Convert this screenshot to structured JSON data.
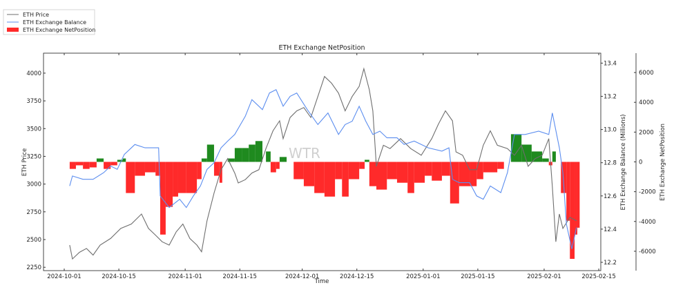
{
  "chart_data": {
    "type": "line",
    "title": "ETH Exchange NetPosition",
    "xlabel": "Time",
    "x_units": "days since 2024-10-01",
    "x_ticks": [
      {
        "day": 0,
        "label": "2024-10-01"
      },
      {
        "day": 14,
        "label": "2024-10-15"
      },
      {
        "day": 31,
        "label": "2024-11-01"
      },
      {
        "day": 45,
        "label": "2024-11-15"
      },
      {
        "day": 61,
        "label": "2024-12-01"
      },
      {
        "day": 75,
        "label": "2024-12-15"
      },
      {
        "day": 92,
        "label": "2025-01-01"
      },
      {
        "day": 106,
        "label": "2025-01-15"
      },
      {
        "day": 123,
        "label": "2025-02-01"
      },
      {
        "day": 137,
        "label": "2025-02-15"
      }
    ],
    "axes": {
      "price": {
        "label": "ETH Price",
        "ylim": [
          2220,
          4180
        ],
        "ticks": [
          "2250",
          "2500",
          "2750",
          "3000",
          "3250",
          "3500",
          "3750",
          "4000"
        ]
      },
      "balance": {
        "label": "ETH Exchange Balance (Millions)",
        "ylim": [
          12.15,
          13.46
        ],
        "ticks": [
          "12.2",
          "12.4",
          "12.6",
          "12.8",
          "13.0",
          "13.2",
          "13.4"
        ]
      },
      "netposition": {
        "label": "ETH Exchange NetPosition",
        "ylim": [
          -7300,
          7300
        ],
        "ticks": [
          "-6000",
          "-4000",
          "-2000",
          "0",
          "2000",
          "4000",
          "6000"
        ]
      }
    },
    "legend": {
      "placement": "top-left outside",
      "entries": [
        "ETH Price",
        "ETH Exchange Balance",
        "ETH Exchange NetPosition"
      ]
    },
    "watermark": "WTR",
    "colors": {
      "price": "#6e6e6e",
      "balance": "#5b8def",
      "net_negative": "#ff2a2a",
      "net_positive": "#1f8a1f"
    },
    "series": [
      {
        "name": "ETH Price",
        "axis": "price",
        "points": [
          [
            1.4,
            2450
          ],
          [
            2.1,
            2325
          ],
          [
            3.9,
            2385
          ],
          [
            5.7,
            2420
          ],
          [
            7.4,
            2360
          ],
          [
            9.2,
            2450
          ],
          [
            11.9,
            2510
          ],
          [
            14.5,
            2600
          ],
          [
            17.2,
            2640
          ],
          [
            19.8,
            2730
          ],
          [
            21.6,
            2600
          ],
          [
            23.4,
            2540
          ],
          [
            25.1,
            2480
          ],
          [
            26.9,
            2450
          ],
          [
            28.7,
            2570
          ],
          [
            30.4,
            2640
          ],
          [
            32.2,
            2510
          ],
          [
            34.0,
            2450
          ],
          [
            35.2,
            2390
          ],
          [
            36.6,
            2670
          ],
          [
            38.4,
            2920
          ],
          [
            40.2,
            3130
          ],
          [
            41.9,
            3230
          ],
          [
            43.7,
            3100
          ],
          [
            44.6,
            3010
          ],
          [
            46.4,
            3040
          ],
          [
            48.1,
            3100
          ],
          [
            49.9,
            3130
          ],
          [
            51.7,
            3320
          ],
          [
            53.5,
            3480
          ],
          [
            55.2,
            3570
          ],
          [
            56.1,
            3410
          ],
          [
            57.9,
            3600
          ],
          [
            59.6,
            3660
          ],
          [
            61.4,
            3690
          ],
          [
            63.2,
            3600
          ],
          [
            65.0,
            3790
          ],
          [
            66.7,
            3970
          ],
          [
            68.5,
            3910
          ],
          [
            70.3,
            3820
          ],
          [
            72.0,
            3660
          ],
          [
            73.8,
            3790
          ],
          [
            75.6,
            3880
          ],
          [
            76.8,
            4040
          ],
          [
            78.2,
            3850
          ],
          [
            79.1,
            3660
          ],
          [
            80.0,
            3160
          ],
          [
            81.8,
            3350
          ],
          [
            83.5,
            3320
          ],
          [
            86.2,
            3410
          ],
          [
            88.8,
            3320
          ],
          [
            91.5,
            3260
          ],
          [
            94.2,
            3410
          ],
          [
            95.9,
            3540
          ],
          [
            97.7,
            3660
          ],
          [
            99.5,
            3570
          ],
          [
            100.4,
            3290
          ],
          [
            102.1,
            3260
          ],
          [
            103.9,
            3130
          ],
          [
            105.7,
            3130
          ],
          [
            107.4,
            3350
          ],
          [
            109.2,
            3480
          ],
          [
            111.0,
            3350
          ],
          [
            113.6,
            3320
          ],
          [
            115.4,
            3260
          ],
          [
            117.2,
            3350
          ],
          [
            118.9,
            3160
          ],
          [
            120.7,
            3230
          ],
          [
            122.5,
            3260
          ],
          [
            124.2,
            3410
          ],
          [
            125.1,
            2980
          ],
          [
            126.0,
            2480
          ],
          [
            126.9,
            2730
          ],
          [
            127.8,
            2600
          ],
          [
            129.6,
            2700
          ],
          [
            131.3,
            2670
          ]
        ]
      },
      {
        "name": "ETH Exchange Balance",
        "axis": "balance",
        "points": [
          [
            1.4,
            12.66
          ],
          [
            2.1,
            12.72
          ],
          [
            4.8,
            12.7
          ],
          [
            7.4,
            12.7
          ],
          [
            10.1,
            12.74
          ],
          [
            11.9,
            12.78
          ],
          [
            13.6,
            12.76
          ],
          [
            15.4,
            12.85
          ],
          [
            18.1,
            12.91
          ],
          [
            20.7,
            12.89
          ],
          [
            24.2,
            12.89
          ],
          [
            24.6,
            12.6
          ],
          [
            26.9,
            12.53
          ],
          [
            29.6,
            12.58
          ],
          [
            31.3,
            12.53
          ],
          [
            33.1,
            12.6
          ],
          [
            34.9,
            12.66
          ],
          [
            36.6,
            12.76
          ],
          [
            38.4,
            12.8
          ],
          [
            40.2,
            12.89
          ],
          [
            41.9,
            12.93
          ],
          [
            43.7,
            12.97
          ],
          [
            46.4,
            13.08
          ],
          [
            48.1,
            13.18
          ],
          [
            50.8,
            13.12
          ],
          [
            52.6,
            13.22
          ],
          [
            54.3,
            13.24
          ],
          [
            56.1,
            13.14
          ],
          [
            57.9,
            13.2
          ],
          [
            59.6,
            13.22
          ],
          [
            62.3,
            13.12
          ],
          [
            65.0,
            13.03
          ],
          [
            67.6,
            13.1
          ],
          [
            70.3,
            12.97
          ],
          [
            72.0,
            13.03
          ],
          [
            73.8,
            13.05
          ],
          [
            75.6,
            13.14
          ],
          [
            77.3,
            13.05
          ],
          [
            79.1,
            12.97
          ],
          [
            80.9,
            12.99
          ],
          [
            82.7,
            12.95
          ],
          [
            85.3,
            12.95
          ],
          [
            87.1,
            12.91
          ],
          [
            89.7,
            12.93
          ],
          [
            93.3,
            12.89
          ],
          [
            96.8,
            12.87
          ],
          [
            98.6,
            12.89
          ],
          [
            99.5,
            12.7
          ],
          [
            101.2,
            12.68
          ],
          [
            103.9,
            12.68
          ],
          [
            105.7,
            12.6
          ],
          [
            107.4,
            12.58
          ],
          [
            109.2,
            12.66
          ],
          [
            111.9,
            12.62
          ],
          [
            113.6,
            12.74
          ],
          [
            115.4,
            12.97
          ],
          [
            118.1,
            12.97
          ],
          [
            121.6,
            12.99
          ],
          [
            124.2,
            12.97
          ],
          [
            125.1,
            13.1
          ],
          [
            126.9,
            12.89
          ],
          [
            127.8,
            12.74
          ],
          [
            128.7,
            12.43
          ],
          [
            130.1,
            12.28
          ],
          [
            131.3,
            12.41
          ]
        ]
      },
      {
        "name": "ETH Exchange NetPosition",
        "axis": "netposition",
        "points": [
          [
            1.4,
            -470
          ],
          [
            3.0,
            -230
          ],
          [
            4.8,
            -470
          ],
          [
            6.5,
            -370
          ],
          [
            8.3,
            230
          ],
          [
            10.1,
            -470
          ],
          [
            11.9,
            -230
          ],
          [
            13.6,
            140
          ],
          [
            15.0,
            230
          ],
          [
            15.8,
            -2090
          ],
          [
            18.1,
            -930
          ],
          [
            20.7,
            -700
          ],
          [
            23.4,
            -930
          ],
          [
            24.6,
            -4880
          ],
          [
            26.0,
            -3020
          ],
          [
            27.8,
            -2330
          ],
          [
            29.2,
            -2090
          ],
          [
            31.3,
            -2090
          ],
          [
            34.0,
            -1160
          ],
          [
            35.2,
            230
          ],
          [
            36.6,
            1160
          ],
          [
            38.4,
            -930
          ],
          [
            39.8,
            -1400
          ],
          [
            40.5,
            0
          ],
          [
            41.9,
            230
          ],
          [
            43.7,
            930
          ],
          [
            45.5,
            930
          ],
          [
            47.3,
            1160
          ],
          [
            49.0,
            1400
          ],
          [
            50.8,
            0
          ],
          [
            51.7,
            700
          ],
          [
            52.9,
            -700
          ],
          [
            54.3,
            -470
          ],
          [
            55.2,
            330
          ],
          [
            57.0,
            0
          ],
          [
            58.8,
            -1160
          ],
          [
            61.4,
            -1630
          ],
          [
            64.1,
            -2090
          ],
          [
            66.7,
            -2330
          ],
          [
            69.4,
            -1160
          ],
          [
            71.2,
            -2330
          ],
          [
            72.9,
            -1160
          ],
          [
            75.6,
            -470
          ],
          [
            77.0,
            140
          ],
          [
            78.2,
            -1630
          ],
          [
            80.0,
            -1860
          ],
          [
            82.7,
            -1160
          ],
          [
            85.3,
            -1400
          ],
          [
            88.0,
            -2090
          ],
          [
            89.7,
            -1400
          ],
          [
            92.4,
            -930
          ],
          [
            94.2,
            -1260
          ],
          [
            96.8,
            -930
          ],
          [
            98.9,
            -2790
          ],
          [
            101.2,
            -1630
          ],
          [
            103.9,
            -1630
          ],
          [
            105.7,
            -1160
          ],
          [
            107.4,
            -700
          ],
          [
            111.0,
            -470
          ],
          [
            112.7,
            0
          ],
          [
            114.5,
            1860
          ],
          [
            117.2,
            1160
          ],
          [
            119.8,
            700
          ],
          [
            122.5,
            230
          ],
          [
            124.2,
            -230
          ],
          [
            125.1,
            700
          ],
          [
            126.0,
            0
          ],
          [
            127.3,
            -2090
          ],
          [
            128.7,
            -3950
          ],
          [
            129.6,
            -6510
          ],
          [
            130.8,
            -4880
          ],
          [
            131.5,
            -4420
          ]
        ]
      }
    ]
  }
}
